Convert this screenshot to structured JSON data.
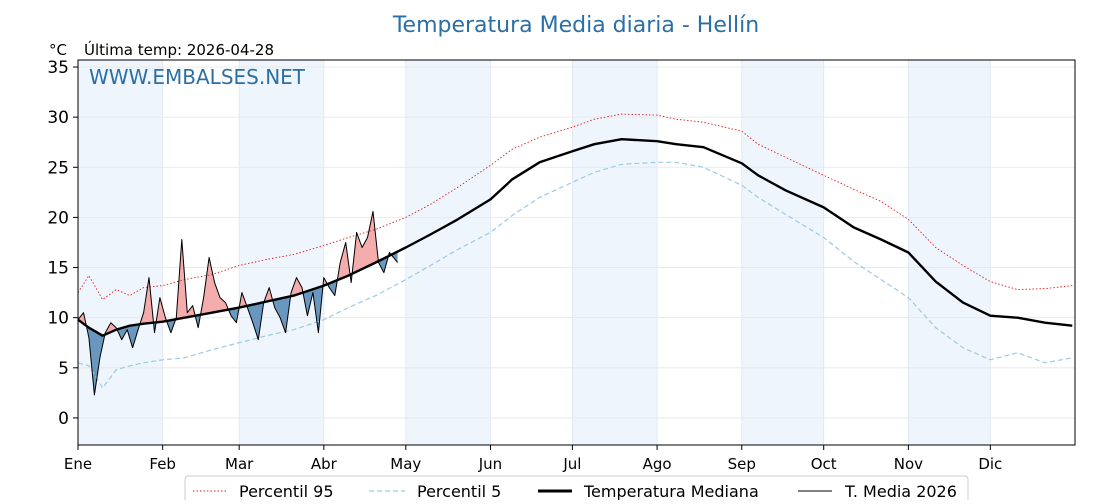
{
  "page": {
    "title": "Temperatura Media diaria - Hellín",
    "unit": "°C",
    "last_update": "Última temp: 2026-04-28",
    "watermark": "WWW.EMBALSES.NET"
  },
  "colors": {
    "title": "#2c6fa6",
    "watermark": "#2c6fa6",
    "p95": "#e31a1c",
    "p5": "#9ecae1",
    "median": "#000000",
    "current": "#000000",
    "above_fill": "#f4a3a3",
    "below_fill": "#5b8db8",
    "band": "#eef5fc"
  },
  "chart_data": {
    "type": "line",
    "title": "Temperatura Media diaria - Hellín",
    "ylabel": "°C",
    "ylim": [
      -2.7,
      35.7
    ],
    "yticks": [
      0,
      5,
      10,
      15,
      20,
      25,
      30,
      35
    ],
    "xlim": [
      1,
      366
    ],
    "months": [
      "Ene",
      "Feb",
      "Mar",
      "Abr",
      "May",
      "Jun",
      "Jul",
      "Ago",
      "Sep",
      "Oct",
      "Nov",
      "Dic"
    ],
    "month_start_day": [
      1,
      32,
      60,
      91,
      121,
      152,
      182,
      213,
      244,
      274,
      305,
      335
    ],
    "grid": true,
    "legend": {
      "position": "bottom-center",
      "entries": [
        "Percentil 95",
        "Percentil 5",
        "Temperatura Mediana",
        "T. Media 2026"
      ]
    },
    "series": [
      {
        "name": "Percentil 95",
        "style": "dotted",
        "x": [
          1,
          5,
          10,
          15,
          20,
          25,
          32,
          40,
          50,
          60,
          70,
          80,
          91,
          100,
          110,
          121,
          130,
          140,
          152,
          160,
          170,
          182,
          190,
          200,
          213,
          220,
          230,
          244,
          250,
          260,
          274,
          285,
          295,
          305,
          315,
          325,
          335,
          345,
          355,
          365
        ],
        "y": [
          12.5,
          14.2,
          11.8,
          12.8,
          12.2,
          13.0,
          13.2,
          13.8,
          14.3,
          15.2,
          15.8,
          16.3,
          17.2,
          18.0,
          18.8,
          20.0,
          21.3,
          23.0,
          25.2,
          26.8,
          28.0,
          29.0,
          29.8,
          30.3,
          30.2,
          29.8,
          29.5,
          28.6,
          27.3,
          26.0,
          24.2,
          22.8,
          21.6,
          19.8,
          17.0,
          15.2,
          13.6,
          12.8,
          12.9,
          13.2
        ]
      },
      {
        "name": "Percentil 5",
        "style": "dashed",
        "x": [
          1,
          5,
          10,
          15,
          20,
          25,
          32,
          40,
          50,
          60,
          70,
          80,
          91,
          100,
          110,
          121,
          130,
          140,
          152,
          160,
          170,
          182,
          190,
          200,
          213,
          220,
          230,
          244,
          250,
          260,
          274,
          285,
          295,
          305,
          315,
          325,
          335,
          345,
          355,
          365
        ],
        "y": [
          5.5,
          5.2,
          3.0,
          4.8,
          5.2,
          5.5,
          5.8,
          6.0,
          6.8,
          7.5,
          8.2,
          8.8,
          9.8,
          11.0,
          12.2,
          13.8,
          15.2,
          16.8,
          18.5,
          20.2,
          22.0,
          23.5,
          24.5,
          25.3,
          25.5,
          25.5,
          25.0,
          23.2,
          22.0,
          20.3,
          18.0,
          15.6,
          13.8,
          12.0,
          9.0,
          7.0,
          5.8,
          6.5,
          5.5,
          6.0
        ]
      },
      {
        "name": "Temperatura Mediana",
        "style": "solid-bold",
        "x": [
          1,
          5,
          10,
          15,
          20,
          25,
          32,
          40,
          50,
          60,
          70,
          80,
          91,
          100,
          110,
          121,
          130,
          140,
          152,
          160,
          170,
          182,
          190,
          200,
          213,
          220,
          230,
          244,
          250,
          260,
          274,
          285,
          295,
          305,
          315,
          325,
          335,
          345,
          355,
          365
        ],
        "y": [
          9.8,
          9.0,
          8.2,
          8.8,
          9.2,
          9.4,
          9.6,
          10.0,
          10.5,
          11.0,
          11.6,
          12.2,
          13.2,
          14.2,
          15.5,
          17.0,
          18.3,
          19.8,
          21.8,
          23.8,
          25.5,
          26.6,
          27.3,
          27.8,
          27.6,
          27.3,
          27.0,
          25.4,
          24.2,
          22.7,
          21.0,
          19.0,
          17.8,
          16.5,
          13.6,
          11.5,
          10.2,
          10.0,
          9.5,
          9.2
        ]
      },
      {
        "name": "T. Media 2026",
        "style": "solid-thin",
        "x": [
          1,
          3,
          5,
          7,
          9,
          11,
          13,
          15,
          17,
          19,
          21,
          23,
          25,
          27,
          29,
          31,
          33,
          35,
          37,
          39,
          41,
          43,
          45,
          47,
          49,
          51,
          53,
          55,
          57,
          59,
          61,
          63,
          65,
          67,
          69,
          71,
          73,
          75,
          77,
          79,
          81,
          83,
          85,
          87,
          89,
          91,
          93,
          95,
          97,
          99,
          101,
          103,
          105,
          107,
          109,
          111,
          113,
          115,
          118
        ],
        "y": [
          9.8,
          10.5,
          8.0,
          2.3,
          6.0,
          8.5,
          9.5,
          9.0,
          7.8,
          8.8,
          7.0,
          8.8,
          10.5,
          14.0,
          8.5,
          12.0,
          10.0,
          8.5,
          10.0,
          17.8,
          10.5,
          11.2,
          9.0,
          12.0,
          16.0,
          13.5,
          12.0,
          11.5,
          10.2,
          9.5,
          12.5,
          11.0,
          9.5,
          7.8,
          11.5,
          13.0,
          11.0,
          10.0,
          8.5,
          12.5,
          14.0,
          13.0,
          10.2,
          12.5,
          8.5,
          14.0,
          13.0,
          12.2,
          15.5,
          17.5,
          13.5,
          18.5,
          17.0,
          18.0,
          20.6,
          15.5,
          14.5,
          16.5,
          15.5
        ]
      }
    ]
  }
}
